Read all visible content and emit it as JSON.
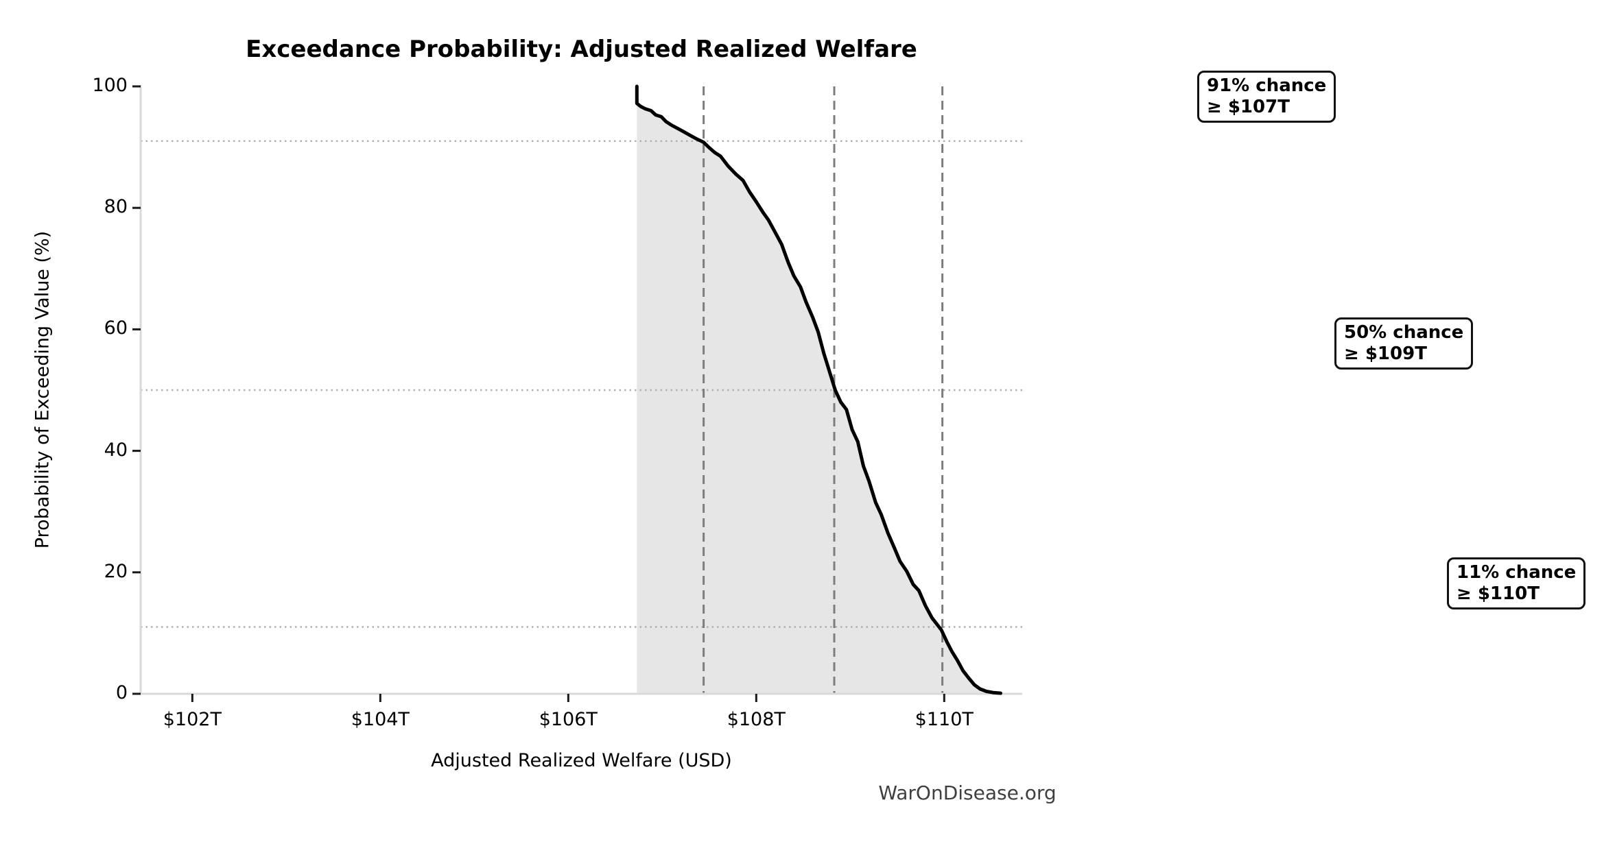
{
  "watermark": {
    "text": "WarOnDisease.org",
    "color": "#3f3f3f"
  },
  "chart_data": {
    "type": "area",
    "title": "Exceedance Probability: Adjusted Realized Welfare",
    "xlabel": "Adjusted Realized Welfare (USD)",
    "ylabel": "Probability of Exceeding Value (%)",
    "grid": "off",
    "legend": "none",
    "xlim": [
      101.45,
      110.83
    ],
    "ylim": [
      0,
      100
    ],
    "x_ticks": [
      {
        "value": 102,
        "label": "$102T"
      },
      {
        "value": 104,
        "label": "$104T"
      },
      {
        "value": 106,
        "label": "$106T"
      },
      {
        "value": 108,
        "label": "$108T"
      },
      {
        "value": 110,
        "label": "$110T"
      }
    ],
    "y_ticks": [
      {
        "value": 0,
        "label": "0"
      },
      {
        "value": 20,
        "label": "20"
      },
      {
        "value": 40,
        "label": "40"
      },
      {
        "value": 60,
        "label": "60"
      },
      {
        "value": 80,
        "label": "80"
      },
      {
        "value": 100,
        "label": "100"
      }
    ],
    "series": [
      {
        "name": "exceedance-curve",
        "units": {
          "x": "trillion USD",
          "y": "percent"
        },
        "points": [
          [
            106.73,
            100
          ],
          [
            106.73,
            97.2
          ],
          [
            106.77,
            96.7
          ],
          [
            106.82,
            96.3
          ],
          [
            106.88,
            96.0
          ],
          [
            106.93,
            95.3
          ],
          [
            106.99,
            95.0
          ],
          [
            107.04,
            94.2
          ],
          [
            107.1,
            93.6
          ],
          [
            107.16,
            93.1
          ],
          [
            107.22,
            92.6
          ],
          [
            107.29,
            92.0
          ],
          [
            107.36,
            91.4
          ],
          [
            107.44,
            90.8
          ],
          [
            107.5,
            89.9
          ],
          [
            107.56,
            89.1
          ],
          [
            107.62,
            88.5
          ],
          [
            107.7,
            86.9
          ],
          [
            107.78,
            85.6
          ],
          [
            107.86,
            84.5
          ],
          [
            107.93,
            82.6
          ],
          [
            108.0,
            81.0
          ],
          [
            108.07,
            79.3
          ],
          [
            108.13,
            78.0
          ],
          [
            108.2,
            76.0
          ],
          [
            108.27,
            74.0
          ],
          [
            108.34,
            71.0
          ],
          [
            108.4,
            68.8
          ],
          [
            108.47,
            67.0
          ],
          [
            108.53,
            64.5
          ],
          [
            108.6,
            62.0
          ],
          [
            108.66,
            59.5
          ],
          [
            108.72,
            56.0
          ],
          [
            108.78,
            53.0
          ],
          [
            108.84,
            50.0
          ],
          [
            108.9,
            48.0
          ],
          [
            108.96,
            46.8
          ],
          [
            109.02,
            43.5
          ],
          [
            109.08,
            41.5
          ],
          [
            109.14,
            37.5
          ],
          [
            109.2,
            35.0
          ],
          [
            109.27,
            31.5
          ],
          [
            109.33,
            29.5
          ],
          [
            109.4,
            26.5
          ],
          [
            109.47,
            24.0
          ],
          [
            109.53,
            21.8
          ],
          [
            109.6,
            20.2
          ],
          [
            109.67,
            18.0
          ],
          [
            109.73,
            17.0
          ],
          [
            109.8,
            14.5
          ],
          [
            109.87,
            12.5
          ],
          [
            109.93,
            11.3
          ],
          [
            109.97,
            10.5
          ],
          [
            110.03,
            8.5
          ],
          [
            110.08,
            7.0
          ],
          [
            110.14,
            5.5
          ],
          [
            110.2,
            3.8
          ],
          [
            110.26,
            2.6
          ],
          [
            110.32,
            1.5
          ],
          [
            110.38,
            0.8
          ],
          [
            110.45,
            0.4
          ],
          [
            110.52,
            0.2
          ],
          [
            110.6,
            0.1
          ]
        ]
      }
    ],
    "reference_lines": {
      "horizontal_dotted_probabilities": [
        91,
        50,
        11
      ],
      "vertical_dashed_values": [
        107.44,
        108.83,
        109.98
      ]
    },
    "annotations": [
      {
        "line1": "91% chance",
        "line2": "≥ $107T"
      },
      {
        "line1": "50% chance",
        "line2": "≥ $109T"
      },
      {
        "line1": "11% chance",
        "line2": "≥ $110T"
      }
    ],
    "colors": {
      "curve": "#000000",
      "area_fill": "#e6e6e6",
      "dashed_line": "#7d7d7d",
      "dotted_line": "#b0b0b0",
      "spine": "#d9d9d9",
      "tick_mark": "#1a1a1a",
      "annotation_border": "#111111",
      "background": "#ffffff"
    }
  }
}
